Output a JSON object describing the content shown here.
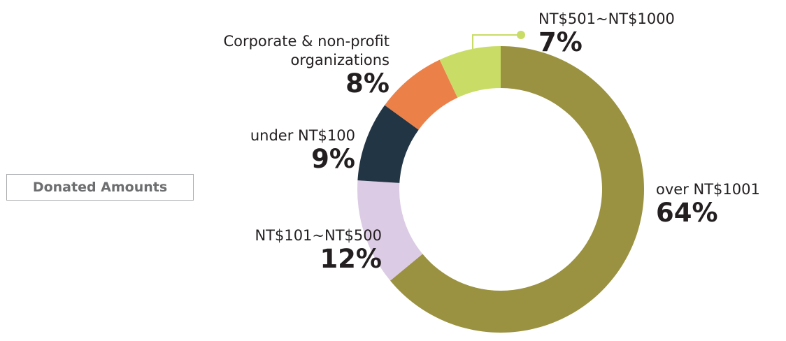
{
  "chart_data": {
    "type": "donut",
    "title": "Donated Amounts",
    "categories": [
      "over NT$1001",
      "NT$101~NT$500",
      "under NT$100",
      "Corporate & non-profit organizations",
      "NT$501~NT$1000"
    ],
    "values": [
      64,
      12,
      9,
      8,
      7
    ],
    "value_labels": [
      "64%",
      "12%",
      "9%",
      "8%",
      "7%"
    ],
    "colors": [
      "#9a9240",
      "#dccbe4",
      "#223545",
      "#ec8049",
      "#c9dc66"
    ]
  }
}
